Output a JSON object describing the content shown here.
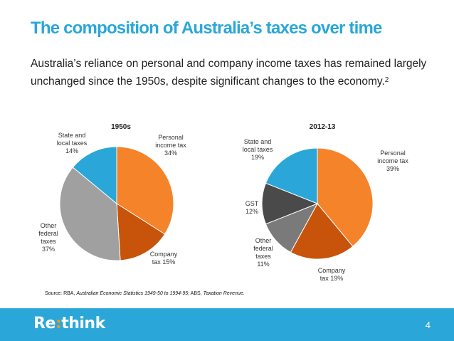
{
  "slide": {
    "title": "The composition of Australia’s taxes over time",
    "intro": "Australia’s reliance on personal and company income taxes has remained largely unchanged since the 1950s, despite significant changes to the economy.",
    "footnote_ref": "2",
    "source": {
      "prefix": "Source: RBA, ",
      "title1": "Australian Economic Statistics 1949-50 to 1994-95",
      "middle": "; ABS, ",
      "title2": "Taxation Revenue",
      "suffix": "."
    },
    "logo": {
      "part1": "Re",
      "colon": ":",
      "part2": "think"
    },
    "page_number": "4"
  },
  "chart_data": [
    {
      "type": "pie",
      "title": "1950s",
      "slices": [
        {
          "name": "Personal income tax",
          "value": 34,
          "color": "#f5832a",
          "label_lines": [
            "Personal",
            "income tax",
            "34%"
          ]
        },
        {
          "name": "Company tax",
          "value": 15,
          "color": "#c8530a",
          "label_lines": [
            "Company",
            "tax 15%"
          ]
        },
        {
          "name": "Other federal taxes",
          "value": 37,
          "color": "#a0a0a0",
          "label_lines": [
            "Other",
            "federal",
            "taxes",
            "37%"
          ]
        },
        {
          "name": "State and local taxes",
          "value": 14,
          "color": "#2aa7d8",
          "label_lines": [
            "State and",
            "local taxes",
            "14%"
          ]
        }
      ]
    },
    {
      "type": "pie",
      "title": "2012-13",
      "slices": [
        {
          "name": "Personal income tax",
          "value": 39,
          "color": "#f5832a",
          "label_lines": [
            "Personal",
            "income tax",
            "39%"
          ]
        },
        {
          "name": "Company tax",
          "value": 19,
          "color": "#c8530a",
          "label_lines": [
            "Company",
            "tax 19%"
          ]
        },
        {
          "name": "Other federal taxes",
          "value": 11,
          "color": "#7a7a7a",
          "label_lines": [
            "Other",
            "federal",
            "taxes",
            "11%"
          ]
        },
        {
          "name": "GST",
          "value": 12,
          "color": "#4a4a4a",
          "label_lines": [
            "GST",
            "12%"
          ]
        },
        {
          "name": "State and local taxes",
          "value": 19,
          "color": "#2aa7d8",
          "label_lines": [
            "State and",
            "local taxes",
            "19%"
          ]
        }
      ]
    }
  ]
}
